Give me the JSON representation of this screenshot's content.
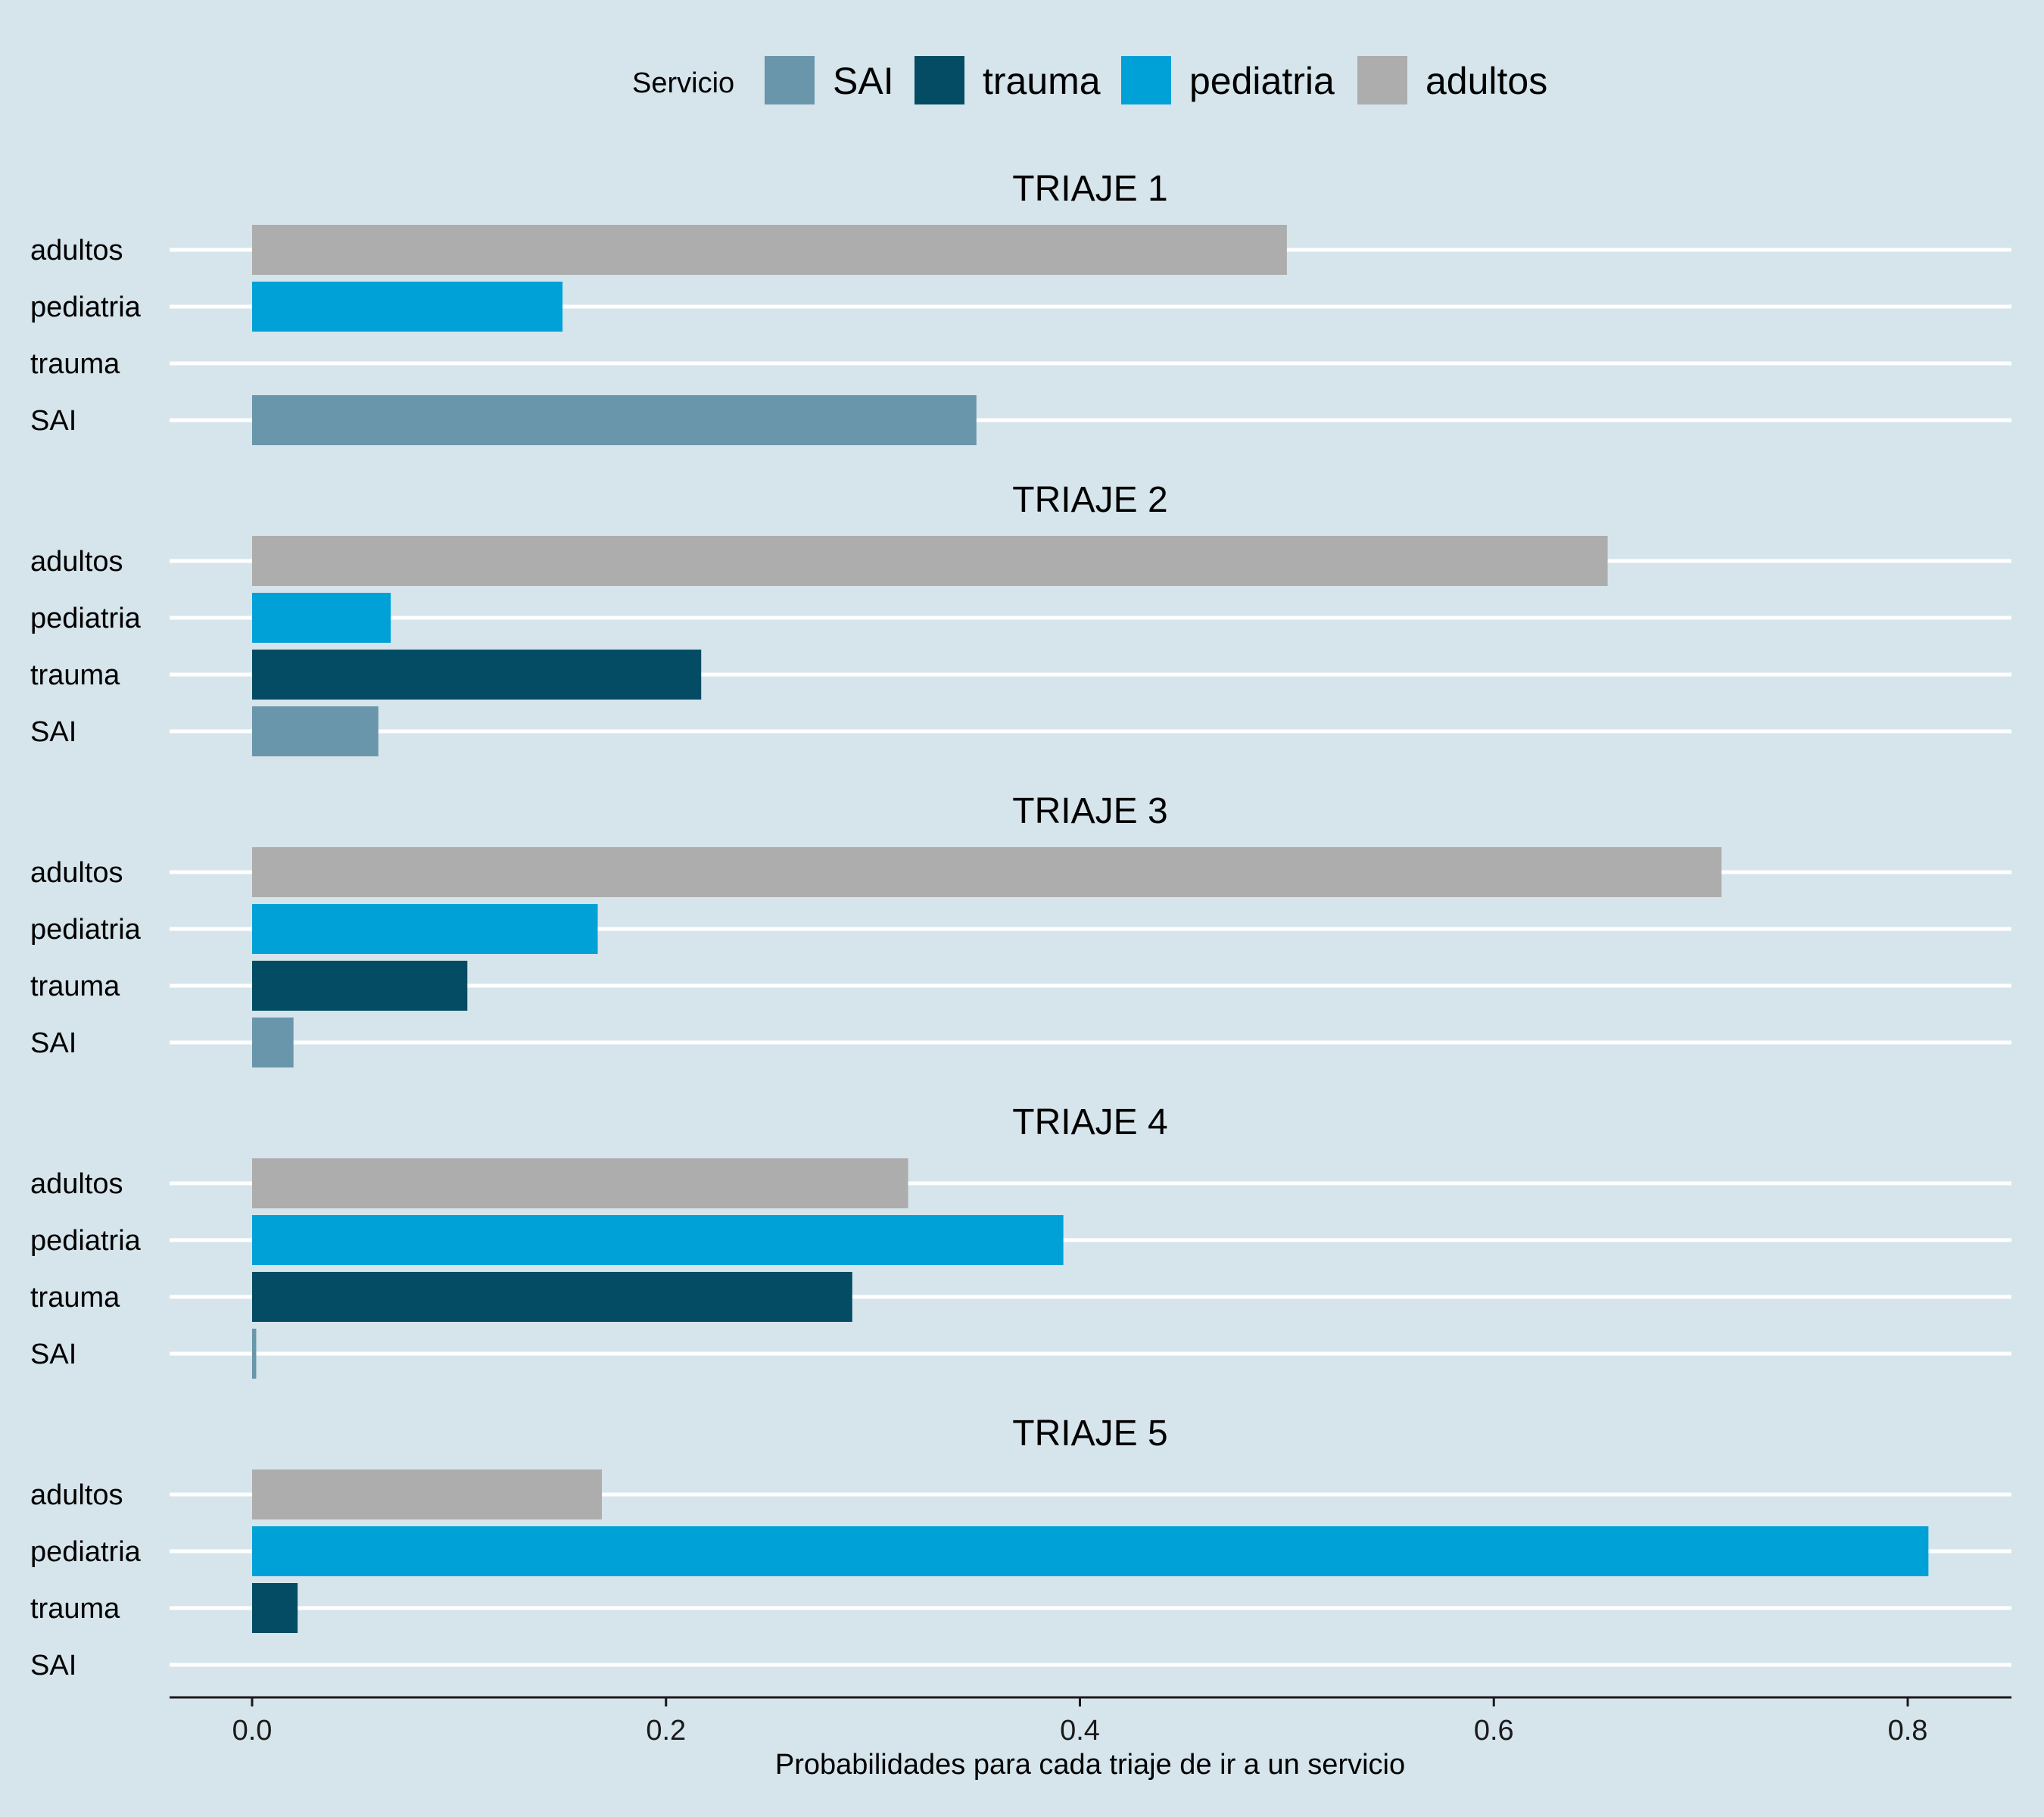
{
  "chart_data": {
    "type": "bar",
    "orientation": "horizontal",
    "legend": {
      "title": "Servicio",
      "position": "top",
      "items": [
        {
          "name": "SAI",
          "color": "#6996ab"
        },
        {
          "name": "trauma",
          "color": "#034c63"
        },
        {
          "name": "pediatria",
          "color": "#00a1d7"
        },
        {
          "name": "adultos",
          "color": "#adadad"
        }
      ]
    },
    "categories": [
      "adultos",
      "pediatria",
      "trauma",
      "SAI"
    ],
    "panels": [
      {
        "title": "TRIAJE 1",
        "values": {
          "adultos": 0.5,
          "pediatria": 0.15,
          "trauma": 0.0,
          "SAI": 0.35
        }
      },
      {
        "title": "TRIAJE 2",
        "values": {
          "adultos": 0.655,
          "pediatria": 0.067,
          "trauma": 0.217,
          "SAI": 0.061
        }
      },
      {
        "title": "TRIAJE 3",
        "values": {
          "adultos": 0.71,
          "pediatria": 0.167,
          "trauma": 0.104,
          "SAI": 0.02
        }
      },
      {
        "title": "TRIAJE 4",
        "values": {
          "adultos": 0.317,
          "pediatria": 0.392,
          "trauma": 0.29,
          "SAI": 0.002
        }
      },
      {
        "title": "TRIAJE 5",
        "values": {
          "adultos": 0.169,
          "pediatria": 0.81,
          "trauma": 0.022,
          "SAI": 0.0
        }
      }
    ],
    "xlabel": "Probabilidades para cada triaje de ir a un servicio",
    "xlim": [
      -0.04,
      0.85
    ],
    "xticks": [
      0.0,
      0.2,
      0.4,
      0.6,
      0.8
    ],
    "xtick_labels": [
      "0.0",
      "0.2",
      "0.4",
      "0.6",
      "0.8"
    ],
    "grid": "horizontal"
  }
}
